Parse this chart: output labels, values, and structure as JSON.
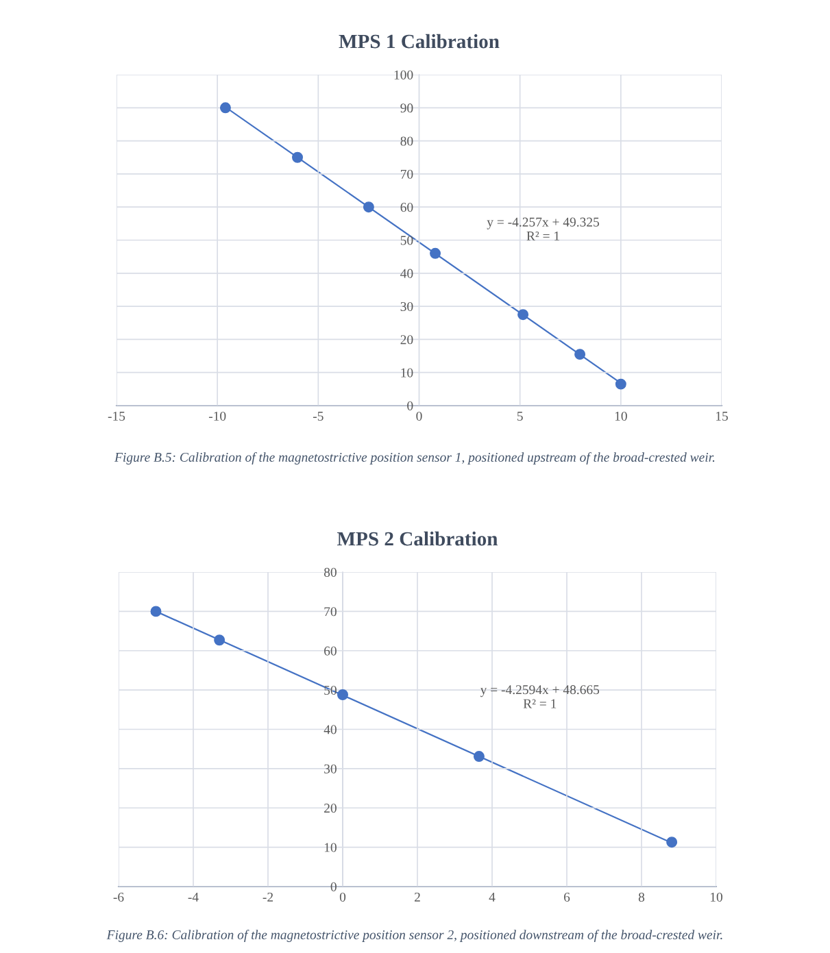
{
  "chart_data": [
    {
      "type": "scatter",
      "title": "MPS 1 Calibration",
      "xlim": [
        -15,
        15
      ],
      "xticks": [
        -15,
        -10,
        -5,
        0,
        5,
        10,
        15
      ],
      "ylim": [
        0,
        100
      ],
      "yticks": [
        0,
        10,
        20,
        30,
        40,
        50,
        60,
        70,
        80,
        90,
        100
      ],
      "grid": true,
      "series": [
        {
          "type": "line",
          "color": "#4472c4",
          "line_style": "solid",
          "x": [
            -9.6,
            10.0
          ],
          "values": [
            90.2,
            6.8
          ]
        },
        {
          "color": "#4472c4",
          "marker": "circle",
          "x": [
            -9.6,
            -6.03,
            -2.5,
            0.8,
            5.15,
            7.97,
            10.0
          ],
          "values": [
            90,
            75,
            60,
            46,
            27.5,
            15.5,
            6.5
          ]
        }
      ],
      "annotations": [
        "y = -4.257x + 49.325\nR² = 1",
        "Figure B.5: Calibration of the magnetostrictive position sensor 1, positioned upstream of the broad-crested weir."
      ]
    },
    {
      "type": "scatter",
      "title": "MPS 2 Calibration",
      "xlim": [
        -6,
        10
      ],
      "xticks": [
        -6,
        -4,
        -2,
        0,
        2,
        4,
        6,
        8,
        10
      ],
      "ylim": [
        0,
        80
      ],
      "yticks": [
        0,
        10,
        20,
        30,
        40,
        50,
        60,
        70,
        80
      ],
      "grid": true,
      "series": [
        {
          "type": "line",
          "color": "#4472c4",
          "line_style": "solid",
          "x": [
            -5.0,
            8.81
          ],
          "values": [
            70.0,
            11.1
          ]
        },
        {
          "color": "#4472c4",
          "marker": "circle",
          "x": [
            -5.0,
            -3.3,
            0.0,
            3.65,
            8.81
          ],
          "values": [
            70,
            62.7,
            48.8,
            33.1,
            11.3
          ]
        }
      ],
      "annotations": [
        "y = -4.2594x + 48.665\nR² = 1",
        "Figure B.6: Calibration of the magnetostrictive position sensor 2, positioned downstream of the broad-crested weir."
      ]
    }
  ]
}
